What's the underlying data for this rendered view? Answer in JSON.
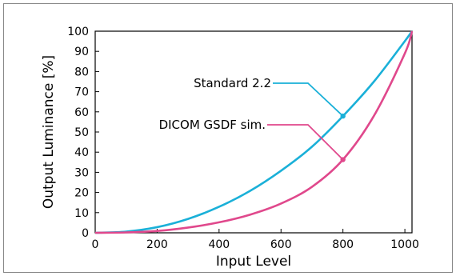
{
  "chart_data": {
    "type": "line",
    "title": "",
    "xlabel": "Input Level",
    "ylabel": "Output Luminance [%]",
    "xlim": [
      0,
      1023
    ],
    "ylim": [
      0,
      100
    ],
    "xticks": [
      0,
      200,
      400,
      600,
      800,
      1000
    ],
    "yticks": [
      0,
      10,
      20,
      30,
      40,
      50,
      60,
      70,
      80,
      90,
      100
    ],
    "grid": false,
    "series": [
      {
        "name": "Standard 2.2",
        "color": "#1ab0d8",
        "x": [
          0,
          100,
          200,
          300,
          400,
          500,
          600,
          700,
          800,
          900,
          1000,
          1023
        ],
        "y": [
          0,
          0.6,
          2.8,
          6.9,
          12.9,
          20.8,
          30.8,
          42.7,
          57.9,
          75.0,
          95.1,
          100
        ],
        "marker": {
          "x": 800,
          "y": 57.9
        }
      },
      {
        "name": "DICOM GSDF sim.",
        "color": "#e0488c",
        "x": [
          0,
          100,
          200,
          300,
          400,
          500,
          600,
          700,
          800,
          900,
          1000,
          1023
        ],
        "y": [
          0,
          0.2,
          0.9,
          2.6,
          5.2,
          9.0,
          14.5,
          22.8,
          36.3,
          58.0,
          89.0,
          100
        ],
        "marker": {
          "x": 800,
          "y": 36.3
        }
      }
    ]
  }
}
